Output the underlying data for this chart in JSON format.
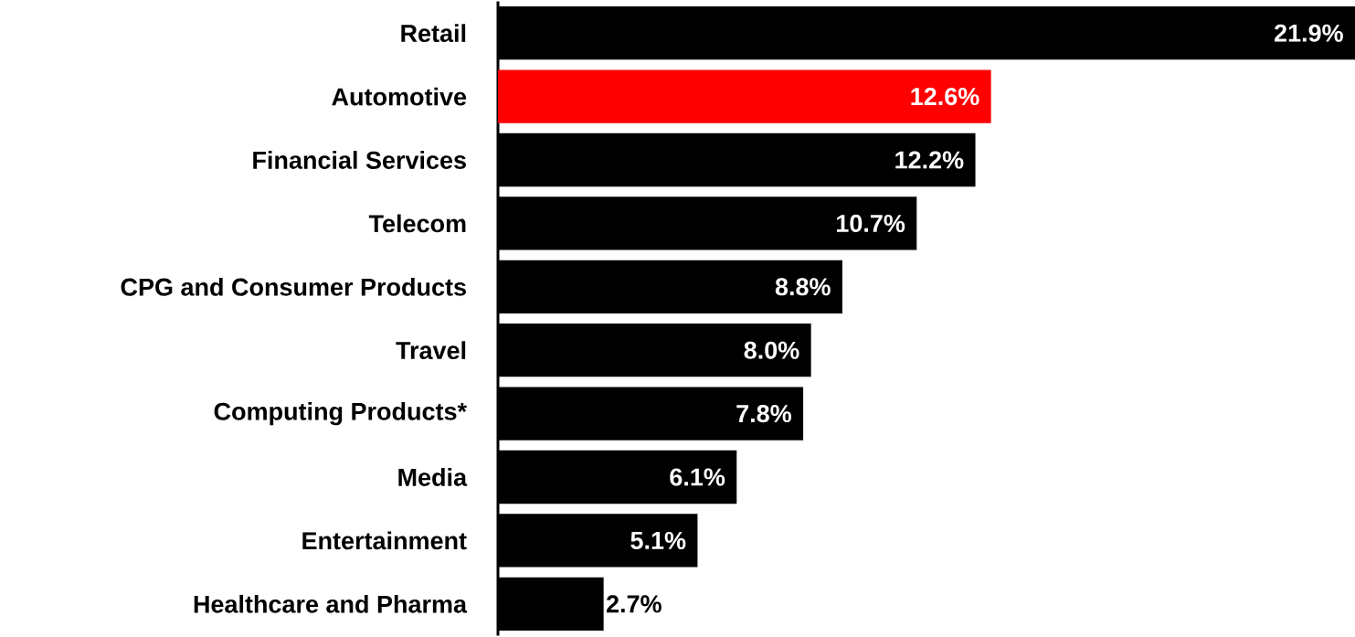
{
  "chart_data": {
    "type": "bar",
    "orientation": "horizontal",
    "categories": [
      "Retail",
      "Automotive",
      "Financial Services",
      "Telecom",
      "CPG and Consumer Products",
      "Travel",
      "Computing Products*",
      "Media",
      "Entertainment",
      "Healthcare and Pharma"
    ],
    "values": [
      21.9,
      12.6,
      12.2,
      10.7,
      8.8,
      8.0,
      7.8,
      6.1,
      5.1,
      2.7
    ],
    "value_labels": [
      "21.9%",
      "12.6%",
      "12.2%",
      "10.7%",
      "8.8%",
      "8.0%",
      "7.8%",
      "6.1%",
      "5.1%",
      "2.7%"
    ],
    "colors": [
      "#000000",
      "#ff0000",
      "#000000",
      "#000000",
      "#000000",
      "#000000",
      "#000000",
      "#000000",
      "#000000",
      "#000000"
    ]
  }
}
